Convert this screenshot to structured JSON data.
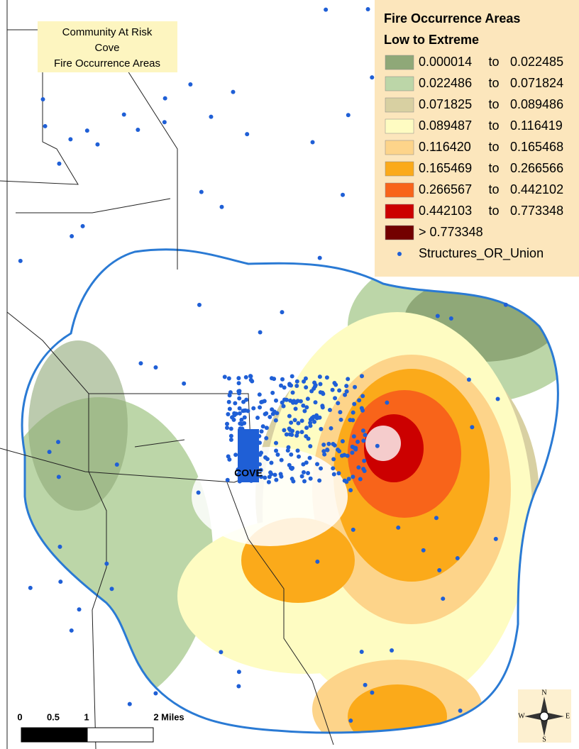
{
  "title_box": {
    "lines": [
      "Community At Risk",
      "Cove",
      "Fire Occurrence Areas"
    ]
  },
  "legend": {
    "title": [
      "Fire Occurrence Areas",
      "Low to Extreme"
    ],
    "separator": "to",
    "classes": [
      {
        "from": "0.000014",
        "to": "0.022485",
        "color": "#8fa878"
      },
      {
        "from": "0.022486",
        "to": "0.071824",
        "color": "#bcd6a8"
      },
      {
        "from": "0.071825",
        "to": "0.089486",
        "color": "#d8d0a2"
      },
      {
        "from": "0.089487",
        "to": "0.116419",
        "color": "#fefcc2"
      },
      {
        "from": "0.116420",
        "to": "0.165468",
        "color": "#fdd48a"
      },
      {
        "from": "0.165469",
        "to": "0.266566",
        "color": "#fbaa1a"
      },
      {
        "from": "0.266567",
        "to": "0.442102",
        "color": "#f8641a"
      },
      {
        "from": "0.442103",
        "to": "0.773348",
        "color": "#cc0000"
      }
    ],
    "top_class": {
      "label": "> 0.773348",
      "color": "#730000"
    },
    "points": {
      "label": "Structures_OR_Union",
      "color": "#1f5fd6"
    }
  },
  "place_label": "COVE",
  "scale_bar": {
    "labels": [
      "0",
      "0.5",
      "1",
      "2 Miles"
    ]
  },
  "compass": {
    "n": "N",
    "s": "S",
    "e": "E",
    "w": "W"
  }
}
